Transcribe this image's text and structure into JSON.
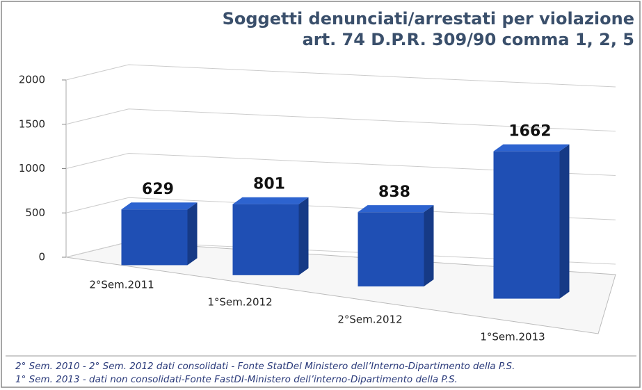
{
  "chart_data": {
    "type": "bar3d",
    "title": [
      "Soggetti denunciati/arrestati per violazione",
      "art. 74 D.P.R. 309/90 comma 1, 2, 5"
    ],
    "categories": [
      "2°Sem.2011",
      "1°Sem.2012",
      "2°Sem.2012",
      "1°Sem.2013"
    ],
    "values": [
      629,
      801,
      838,
      1662
    ],
    "color": "#1f4fb4",
    "ylim": [
      0,
      2000
    ],
    "yticks": [
      0,
      500,
      1000,
      1500,
      2000
    ],
    "grid": true,
    "notes": [
      "2° Sem. 2010 - 2° Sem. 2012 dati consolidati - Fonte StatDel Ministero dell’Interno-Dipartimento della P.S.",
      "1° Sem. 2013 - dati non consolidati-Fonte FastDI-Ministero dell’interno-Dipartimento della P.S."
    ]
  }
}
